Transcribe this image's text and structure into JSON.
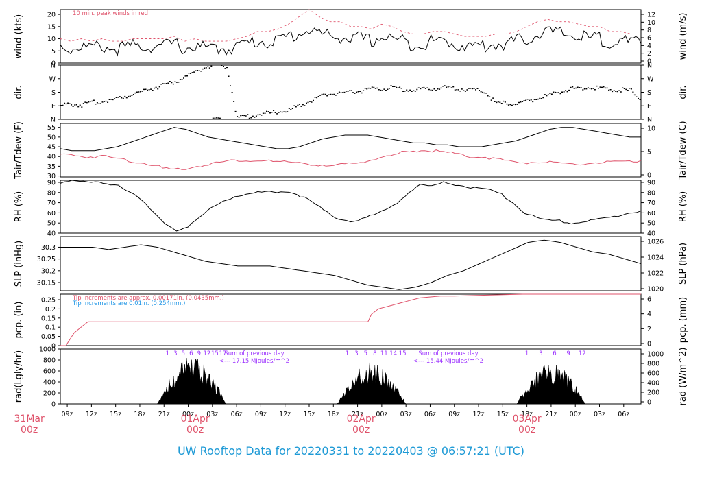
{
  "page_title": "UW Rooftop Data for 20220331  to  20220403 @ 06:57:21  (UTC)",
  "colors": {
    "series_red": "#df536b",
    "series_blue": "#2297e6",
    "label_purple": "#9b30ff",
    "date_red": "#df536b",
    "title_blue": "#1e9ad6"
  },
  "chart_data": [
    {
      "type": "line",
      "name": "wind",
      "ylabel": "wind (kts)",
      "ylabel_right": "wind (m/s)",
      "ylim": [
        0,
        22
      ],
      "yticks": [
        0,
        5,
        10,
        15,
        20
      ],
      "yticks_right": [
        "0",
        "2",
        "4",
        "6",
        "8",
        "10",
        "12"
      ],
      "annotation": "10 min. peak winds in red",
      "series": [
        {
          "name": "wind",
          "color": "#000000",
          "values": [
            7,
            6,
            7,
            6,
            7,
            6,
            6,
            7,
            7,
            7,
            7,
            8,
            6,
            7,
            6,
            6,
            6,
            7,
            8,
            9,
            9,
            9,
            11,
            12,
            14,
            12,
            11,
            11,
            10,
            10,
            9,
            11,
            10,
            9,
            8,
            8,
            9,
            9,
            8,
            7,
            7,
            7,
            8,
            8,
            9,
            10,
            12,
            13,
            12,
            12,
            11,
            10,
            10,
            9,
            9,
            8,
            8
          ]
        },
        {
          "name": "peak",
          "color": "#df536b",
          "values": [
            10,
            9,
            10,
            9,
            10,
            9,
            9,
            10,
            10,
            10,
            10,
            11,
            9,
            10,
            9,
            9,
            9,
            10,
            11,
            13,
            13,
            14,
            16,
            19,
            22,
            19,
            17,
            17,
            15,
            15,
            14,
            16,
            15,
            13,
            12,
            12,
            13,
            13,
            12,
            11,
            11,
            11,
            12,
            12,
            13,
            15,
            17,
            18,
            17,
            17,
            16,
            15,
            15,
            13,
            13,
            12,
            12
          ]
        }
      ]
    },
    {
      "type": "scatter",
      "name": "dir",
      "ylabel": "dir.",
      "ylabel_right": "dir.",
      "ylim": [
        0,
        360
      ],
      "ytick_values": [
        0,
        90,
        180,
        270,
        360
      ],
      "yticks": [
        "N",
        "E",
        "S",
        "W",
        "N"
      ],
      "series": [
        {
          "name": "direction",
          "color": "#000000",
          "values": [
            90,
            100,
            95,
            110,
            120,
            130,
            150,
            170,
            190,
            210,
            230,
            250,
            280,
            320,
            350,
            355,
            350,
            10,
            20,
            30,
            40,
            50,
            60,
            90,
            120,
            150,
            170,
            175,
            180,
            190,
            200,
            205,
            210,
            200,
            195,
            200,
            205,
            210,
            205,
            200,
            195,
            180,
            100,
            110,
            100,
            120,
            140,
            160,
            180,
            200,
            205,
            210,
            205,
            200,
            195,
            190,
            120
          ]
        }
      ]
    },
    {
      "type": "line",
      "name": "temp",
      "ylabel": "Tair/Tdew (F)",
      "ylabel_right": "Tair/Tdew (C)",
      "ylim": [
        29.5,
        57
      ],
      "yticks": [
        30,
        35,
        40,
        45,
        50,
        55
      ],
      "yticks_right": [
        "0",
        "5",
        "10"
      ],
      "series": [
        {
          "name": "Tair",
          "color": "#000000",
          "values": [
            44,
            43,
            43,
            43,
            44,
            45,
            47,
            49,
            51,
            53,
            55,
            54,
            52,
            50,
            49,
            48,
            47,
            46,
            45,
            44,
            44,
            45,
            47,
            49,
            50,
            51,
            51,
            51,
            50,
            49,
            48,
            47,
            47,
            46,
            46,
            45,
            45,
            45,
            46,
            47,
            48,
            50,
            52,
            54,
            55,
            55,
            54,
            53,
            52,
            51,
            50,
            50
          ]
        },
        {
          "name": "Tdew",
          "color": "#df536b",
          "values": [
            41,
            41,
            40,
            40,
            40,
            39,
            38,
            37,
            36,
            34,
            33,
            34,
            35,
            36,
            37,
            38,
            38,
            38,
            38,
            37,
            37,
            37,
            36,
            35,
            35,
            36,
            37,
            38,
            39,
            40,
            42,
            43,
            43,
            43,
            42,
            41,
            40,
            40,
            39,
            38,
            37,
            37,
            37,
            37,
            36,
            36,
            36,
            37,
            37,
            37,
            37,
            38
          ]
        }
      ]
    },
    {
      "type": "line",
      "name": "rh",
      "ylabel": "RH (%)",
      "ylabel_right": "RH (%)",
      "ylim": [
        40,
        92
      ],
      "yticks": [
        40,
        50,
        60,
        70,
        80,
        90
      ],
      "series": [
        {
          "name": "RH",
          "color": "#000000",
          "values": [
            90,
            92,
            90,
            90,
            89,
            88,
            80,
            72,
            60,
            50,
            43,
            46,
            55,
            65,
            72,
            76,
            78,
            80,
            81,
            81,
            80,
            75,
            68,
            60,
            54,
            52,
            54,
            58,
            63,
            70,
            80,
            88,
            86,
            90,
            88,
            86,
            84,
            82,
            78,
            70,
            60,
            55,
            53,
            52,
            50,
            51,
            53,
            55,
            57,
            60,
            62
          ]
        }
      ]
    },
    {
      "type": "line",
      "name": "slp",
      "ylabel": "SLP (inHg)",
      "ylabel_right": "SLP (hPa)",
      "ylim": [
        30.115,
        30.345
      ],
      "yticks": [
        30.15,
        30.2,
        30.25,
        30.3
      ],
      "yticks_right": [
        "1020",
        "1022",
        "1024",
        "1026"
      ],
      "series": [
        {
          "name": "SLP",
          "color": "#000000",
          "values": [
            30.3,
            30.3,
            30.3,
            30.29,
            30.3,
            30.31,
            30.3,
            30.28,
            30.26,
            30.24,
            30.23,
            30.22,
            30.22,
            30.22,
            30.21,
            30.2,
            30.19,
            30.18,
            30.16,
            30.14,
            30.13,
            30.12,
            30.13,
            30.15,
            30.18,
            30.2,
            30.23,
            30.26,
            30.29,
            30.32,
            30.33,
            30.32,
            30.3,
            30.28,
            30.27,
            30.25,
            30.23
          ]
        }
      ]
    },
    {
      "type": "line",
      "name": "pcp",
      "ylabel": "pcp. (in)",
      "ylabel_right": "pcp. (mm)",
      "ylim": [
        0,
        0.28
      ],
      "yticks": [
        0,
        0.05,
        0.1,
        0.15,
        0.2,
        0.25
      ],
      "yticks_right": [
        "0",
        "2",
        "4",
        "6"
      ],
      "annotations": [
        "Tip increments are approx. 0.00171in. (0.0435mm.)",
        "Tip increments are 0.01in. (0.254mm.)"
      ],
      "series": [
        {
          "name": "accum",
          "color": "#df536b",
          "x": [
            0,
            0.8,
            2,
            4,
            30,
            44.5,
            45,
            46,
            48,
            49,
            50,
            52,
            55,
            57,
            67,
            70,
            75,
            84
          ],
          "values": [
            0,
            0,
            0.07,
            0.13,
            0.13,
            0.13,
            0.17,
            0.2,
            0.22,
            0.23,
            0.24,
            0.26,
            0.27,
            0.27,
            0.28,
            0.28,
            0.28,
            0.28
          ]
        }
      ]
    },
    {
      "type": "area",
      "name": "rad",
      "ylabel": "rad(Lgly/hr)",
      "ylabel_right": "rad (W/m^2)",
      "ylim": [
        0,
        1000
      ],
      "yticks": [
        0,
        200,
        400,
        600,
        800,
        1000
      ],
      "yticks_right": [
        "0",
        "200",
        "400",
        "600",
        "800",
        "1000"
      ],
      "hour_labels": [
        {
          "day": 0,
          "labels": [
            "1",
            "3",
            "5",
            "6",
            "9",
            "12",
            "15",
            "17"
          ]
        },
        {
          "day": 1,
          "labels": [
            "1",
            "3",
            "5",
            "8",
            "11",
            "14",
            "15"
          ]
        },
        {
          "day": 2,
          "labels": [
            "1",
            "3",
            "6",
            "9",
            "12"
          ]
        }
      ],
      "sums": [
        {
          "line1": "Sum of previous day",
          "line2": "<--- 17.15 MJoules/m^2"
        },
        {
          "line1": "Sum of previous day",
          "line2": "<--- 15.44 MJoules/m^2"
        }
      ],
      "days": [
        {
          "start": 14,
          "end": 24,
          "peak": 880
        },
        {
          "start": 40,
          "end": 50,
          "peak": 760
        },
        {
          "start": 66,
          "end": 76,
          "peak": 760
        }
      ]
    }
  ],
  "x_axis": {
    "hours_total": 84,
    "hour_ticks": [
      "09z",
      "12z",
      "15z",
      "18z",
      "21z",
      "00z",
      "03z",
      "06z",
      "09z",
      "12z",
      "15z",
      "18z",
      "21z",
      "00z",
      "03z",
      "06z",
      "09z",
      "12z",
      "15z",
      "18z",
      "21z",
      "00z",
      "03z",
      "06z"
    ],
    "date_labels": [
      {
        "label": "31Mar",
        "sub": "00z",
        "hour": -8
      },
      {
        "label": "01Apr",
        "sub": "00z",
        "hour": 16
      },
      {
        "label": "02Apr",
        "sub": "00z",
        "hour": 40
      },
      {
        "label": "03Apr",
        "sub": "00z",
        "hour": 64
      }
    ]
  }
}
